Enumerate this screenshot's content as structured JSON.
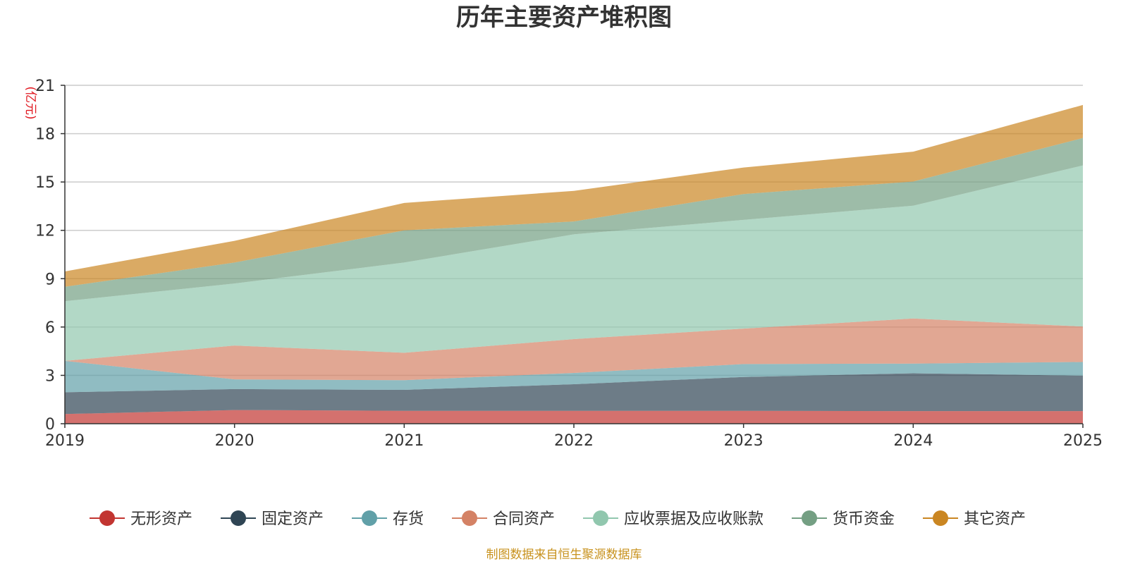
{
  "chart_data": {
    "type": "area",
    "stacked": true,
    "title": "历年主要资产堆积图",
    "y_unit": "(亿元)",
    "x": [
      "2019",
      "2020",
      "2021",
      "2022",
      "2023",
      "2024",
      "2025"
    ],
    "ylim": [
      0,
      21
    ],
    "yticks": [
      "0",
      "3",
      "6",
      "9",
      "12",
      "15",
      "18",
      "21"
    ],
    "grid": true,
    "legend_position": "bottom",
    "series": [
      {
        "name": "无形资产",
        "color": "#c23531",
        "values": [
          0.6,
          0.85,
          0.8,
          0.8,
          0.8,
          0.78,
          0.78
        ]
      },
      {
        "name": "固定资产",
        "color": "#2f4554",
        "values": [
          1.35,
          1.3,
          1.3,
          1.65,
          2.1,
          2.35,
          2.2
        ]
      },
      {
        "name": "存货",
        "color": "#61a0a8",
        "values": [
          1.95,
          0.6,
          0.6,
          0.7,
          0.8,
          0.6,
          0.85
        ]
      },
      {
        "name": "合同资产",
        "color": "#d48265",
        "values": [
          0.0,
          2.1,
          1.7,
          2.1,
          2.2,
          2.8,
          2.2
        ]
      },
      {
        "name": "应收票据及应收账款",
        "color": "#91c7ae",
        "values": [
          3.7,
          3.85,
          5.6,
          6.5,
          6.75,
          7.0,
          10.0
        ]
      },
      {
        "name": "货币资金",
        "color": "#749f83",
        "values": [
          0.9,
          1.3,
          2.0,
          0.8,
          1.6,
          1.5,
          1.7
        ]
      },
      {
        "name": "其它资产",
        "color": "#ca8622",
        "values": [
          0.95,
          1.35,
          1.7,
          1.9,
          1.65,
          1.85,
          2.05
        ]
      }
    ],
    "source_note": "制图数据来自恒生聚源数据库"
  }
}
